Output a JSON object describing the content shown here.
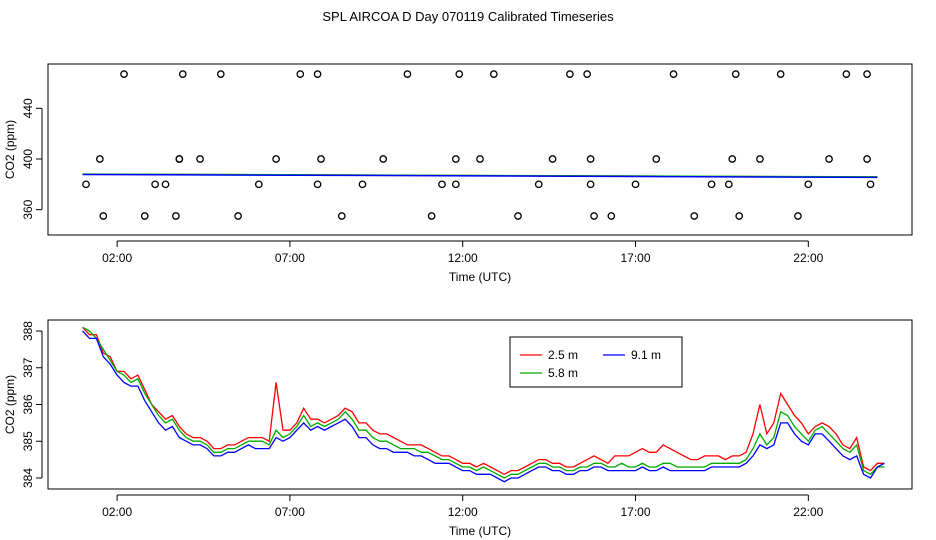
{
  "title": "SPL AIRCOA D  Day 070119  Calibrated Timeseries",
  "chart_data": [
    {
      "type": "scatter",
      "xlabel": "Time (UTC)",
      "ylabel": "CO2 (ppm)",
      "xlim": [
        0.0,
        25.0
      ],
      "ylim": [
        340,
        475
      ],
      "x_ticks": [
        2,
        7,
        12,
        17,
        22
      ],
      "x_tick_labels": [
        "02:00",
        "07:00",
        "12:00",
        "17:00",
        "22:00"
      ],
      "y_ticks": [
        360,
        400,
        440
      ],
      "y_tick_labels": [
        "360",
        "400",
        "440"
      ],
      "grid": false,
      "legend": false,
      "outliers": {
        "x": [
          1.6,
          1.1,
          1.5,
          2.2,
          2.8,
          3.1,
          3.4,
          3.7,
          3.8,
          3.9,
          3.8,
          4.4,
          5.0,
          5.5,
          6.1,
          6.6,
          7.3,
          7.8,
          7.9,
          7.8,
          8.5,
          9.1,
          9.7,
          10.4,
          11.1,
          11.4,
          11.8,
          11.8,
          11.9,
          12.5,
          12.9,
          13.6,
          14.2,
          14.6,
          15.1,
          15.6,
          15.7,
          15.7,
          15.8,
          16.3,
          17.0,
          17.6,
          18.1,
          18.7,
          19.2,
          19.7,
          19.8,
          19.9,
          20.0,
          20.6,
          21.2,
          21.7,
          22.0,
          22.6,
          23.1,
          23.7,
          23.7,
          23.8
        ],
        "y": [
          355,
          380,
          400,
          467,
          355,
          380,
          380,
          355,
          400,
          467,
          400,
          400,
          467,
          355,
          380,
          400,
          467,
          467,
          400,
          380,
          355,
          380,
          400,
          467,
          355,
          380,
          380,
          400,
          467,
          400,
          467,
          355,
          380,
          400,
          467,
          467,
          400,
          380,
          355,
          355,
          380,
          400,
          467,
          355,
          380,
          380,
          400,
          467,
          355,
          400,
          467,
          355,
          380,
          400,
          467,
          467,
          400,
          380
        ]
      },
      "series": [
        {
          "name": "2.5 m",
          "color": "#ff0000",
          "x": [
            1,
            24
          ],
          "values": [
            388.0,
            385.8
          ]
        },
        {
          "name": "5.8 m",
          "color": "#00cc00",
          "x": [
            1,
            24
          ],
          "values": [
            388.1,
            385.9
          ]
        },
        {
          "name": "9.1 m",
          "color": "#0000ff",
          "x": [
            1,
            24
          ],
          "values": [
            387.8,
            385.5
          ]
        }
      ]
    },
    {
      "type": "line",
      "xlabel": "Time (UTC)",
      "ylabel": "CO2 (ppm)",
      "xlim": [
        0.0,
        25.0
      ],
      "ylim": [
        383.7,
        388.3
      ],
      "x_ticks": [
        2,
        7,
        12,
        17,
        22
      ],
      "x_tick_labels": [
        "02:00",
        "07:00",
        "12:00",
        "17:00",
        "22:00"
      ],
      "y_ticks": [
        384,
        385,
        386,
        387,
        388
      ],
      "y_tick_labels": [
        "384",
        "385",
        "386",
        "387",
        "388"
      ],
      "grid": false,
      "legend": "top-center",
      "x": [
        1.0,
        1.2,
        1.4,
        1.6,
        1.8,
        2.0,
        2.2,
        2.4,
        2.6,
        2.8,
        3.0,
        3.2,
        3.4,
        3.6,
        3.8,
        4.0,
        4.2,
        4.4,
        4.6,
        4.8,
        5.0,
        5.2,
        5.4,
        5.6,
        5.8,
        6.0,
        6.2,
        6.4,
        6.6,
        6.8,
        7.0,
        7.2,
        7.4,
        7.6,
        7.8,
        8.0,
        8.2,
        8.4,
        8.6,
        8.8,
        9.0,
        9.2,
        9.4,
        9.6,
        9.8,
        10.0,
        10.2,
        10.4,
        10.6,
        10.8,
        11.0,
        11.2,
        11.4,
        11.6,
        11.8,
        12.0,
        12.2,
        12.4,
        12.6,
        12.8,
        13.0,
        13.2,
        13.4,
        13.6,
        13.8,
        14.0,
        14.2,
        14.4,
        14.6,
        14.8,
        15.0,
        15.2,
        15.4,
        15.6,
        15.8,
        16.0,
        16.2,
        16.4,
        16.6,
        16.8,
        17.0,
        17.2,
        17.4,
        17.6,
        17.8,
        18.0,
        18.2,
        18.4,
        18.6,
        18.8,
        19.0,
        19.2,
        19.4,
        19.6,
        19.8,
        20.0,
        20.2,
        20.4,
        20.6,
        20.8,
        21.0,
        21.2,
        21.4,
        21.6,
        21.8,
        22.0,
        22.2,
        22.4,
        22.6,
        22.8,
        23.0,
        23.2,
        23.4,
        23.6,
        23.8,
        24.0,
        24.2
      ],
      "series": [
        {
          "name": "2.5 m",
          "color": "#ff0000",
          "values": [
            388.1,
            387.9,
            387.9,
            387.4,
            387.3,
            386.9,
            386.9,
            386.7,
            386.8,
            386.4,
            386.0,
            385.8,
            385.6,
            385.7,
            385.4,
            385.2,
            385.1,
            385.1,
            385.0,
            384.8,
            384.8,
            384.9,
            384.9,
            385.0,
            385.1,
            385.1,
            385.1,
            385.0,
            386.6,
            385.3,
            385.3,
            385.5,
            385.9,
            385.6,
            385.6,
            385.5,
            385.6,
            385.7,
            385.9,
            385.8,
            385.5,
            385.5,
            385.3,
            385.2,
            385.2,
            385.1,
            385.0,
            384.9,
            384.9,
            384.9,
            384.8,
            384.7,
            384.6,
            384.6,
            384.5,
            384.4,
            384.4,
            384.3,
            384.4,
            384.3,
            384.2,
            384.1,
            384.2,
            384.2,
            384.3,
            384.4,
            384.5,
            384.5,
            384.4,
            384.4,
            384.3,
            384.3,
            384.4,
            384.5,
            384.6,
            384.5,
            384.4,
            384.6,
            384.6,
            384.6,
            384.7,
            384.8,
            384.7,
            384.7,
            384.9,
            384.8,
            384.7,
            384.6,
            384.5,
            384.5,
            384.6,
            384.6,
            384.6,
            384.5,
            384.6,
            384.6,
            384.7,
            385.2,
            386.0,
            385.2,
            385.5,
            386.3,
            386.0,
            385.7,
            385.5,
            385.2,
            385.4,
            385.5,
            385.4,
            385.2,
            384.9,
            384.8,
            385.1,
            384.3,
            384.2,
            384.4,
            384.4
          ]
        },
        {
          "name": "5.8 m",
          "color": "#00aa00",
          "values": [
            388.1,
            388.0,
            387.8,
            387.5,
            387.2,
            386.9,
            386.8,
            386.6,
            386.7,
            386.3,
            386.0,
            385.7,
            385.5,
            385.6,
            385.3,
            385.1,
            385.0,
            385.0,
            384.9,
            384.7,
            384.7,
            384.8,
            384.8,
            384.9,
            385.0,
            385.0,
            385.0,
            384.9,
            385.3,
            385.1,
            385.2,
            385.4,
            385.7,
            385.4,
            385.5,
            385.4,
            385.5,
            385.6,
            385.8,
            385.6,
            385.3,
            385.3,
            385.1,
            385.0,
            385.0,
            384.9,
            384.8,
            384.8,
            384.8,
            384.7,
            384.7,
            384.6,
            384.5,
            384.5,
            384.4,
            384.3,
            384.3,
            384.2,
            384.3,
            384.2,
            384.1,
            384.0,
            384.1,
            384.1,
            384.2,
            384.3,
            384.4,
            384.4,
            384.3,
            384.3,
            384.2,
            384.2,
            384.3,
            384.3,
            384.4,
            384.4,
            384.3,
            384.3,
            384.4,
            384.3,
            384.3,
            384.4,
            384.3,
            384.3,
            384.4,
            384.4,
            384.3,
            384.3,
            384.3,
            384.3,
            384.3,
            384.4,
            384.4,
            384.4,
            384.4,
            384.4,
            384.5,
            384.8,
            385.2,
            384.9,
            385.1,
            385.8,
            385.7,
            385.4,
            385.2,
            385.0,
            385.3,
            385.4,
            385.2,
            385.0,
            384.8,
            384.7,
            384.9,
            384.2,
            384.1,
            384.3,
            384.3
          ]
        },
        {
          "name": "9.1 m",
          "color": "#0000ff",
          "values": [
            388.0,
            387.8,
            387.8,
            387.3,
            387.1,
            386.8,
            386.6,
            386.5,
            386.5,
            386.1,
            385.8,
            385.5,
            385.3,
            385.4,
            385.1,
            385.0,
            384.9,
            384.9,
            384.8,
            384.6,
            384.6,
            384.7,
            384.7,
            384.8,
            384.9,
            384.8,
            384.8,
            384.8,
            385.1,
            385.0,
            385.1,
            385.3,
            385.5,
            385.3,
            385.4,
            385.3,
            385.4,
            385.5,
            385.6,
            385.4,
            385.1,
            385.1,
            384.9,
            384.8,
            384.8,
            384.7,
            384.7,
            384.7,
            384.6,
            384.6,
            384.5,
            384.4,
            384.4,
            384.4,
            384.3,
            384.2,
            384.2,
            384.1,
            384.1,
            384.1,
            384.0,
            383.9,
            384.0,
            384.0,
            384.1,
            384.2,
            384.3,
            384.3,
            384.2,
            384.2,
            384.1,
            384.1,
            384.2,
            384.2,
            384.3,
            384.3,
            384.2,
            384.2,
            384.2,
            384.2,
            384.2,
            384.3,
            384.2,
            384.2,
            384.3,
            384.2,
            384.2,
            384.2,
            384.2,
            384.2,
            384.2,
            384.3,
            384.3,
            384.3,
            384.3,
            384.3,
            384.4,
            384.6,
            384.9,
            384.8,
            384.9,
            385.5,
            385.5,
            385.2,
            385.0,
            384.9,
            385.2,
            385.2,
            385.0,
            384.8,
            384.6,
            384.5,
            384.6,
            384.1,
            384.0,
            384.3,
            384.4
          ]
        }
      ]
    }
  ]
}
